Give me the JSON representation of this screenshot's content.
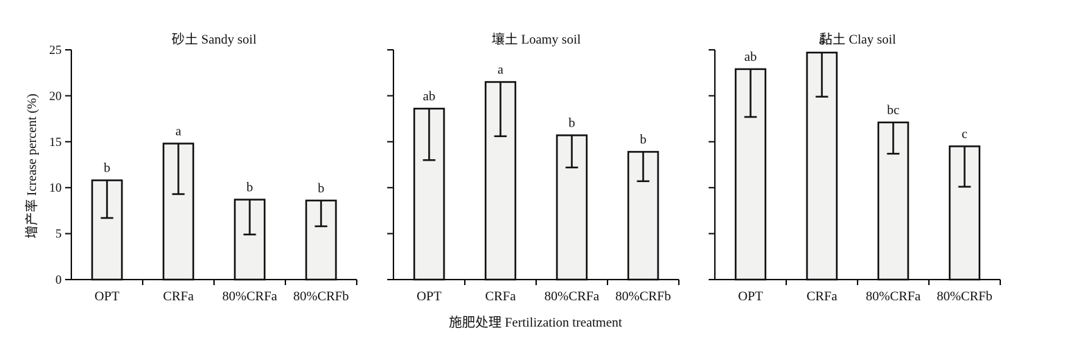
{
  "figure": {
    "ylabel": "增产率 Icrease percent (%)",
    "xlabel": "施肥处理 Fertilization treatment"
  },
  "chart_data": [
    {
      "type": "bar",
      "title": "砂土 Sandy soil",
      "categories": [
        "OPT",
        "CRFa",
        "80%CRFa",
        "80%CRFb"
      ],
      "values": [
        10.8,
        14.8,
        8.7,
        8.6
      ],
      "error_lower": [
        6.7,
        9.3,
        4.9,
        5.8
      ],
      "significance_letters": [
        "b",
        "a",
        "b",
        "b"
      ],
      "ylim": [
        0,
        25
      ],
      "yticks": [
        0,
        5,
        10,
        15,
        20,
        25
      ],
      "show_tick_labels": true
    },
    {
      "type": "bar",
      "title": "壤土 Loamy soil",
      "categories": [
        "OPT",
        "CRFa",
        "80%CRFa",
        "80%CRFb"
      ],
      "values": [
        18.6,
        21.5,
        15.7,
        13.9
      ],
      "error_lower": [
        13.0,
        15.6,
        12.2,
        10.7
      ],
      "significance_letters": [
        "ab",
        "a",
        "b",
        "b"
      ],
      "ylim": [
        0,
        25
      ],
      "yticks": [
        0,
        5,
        10,
        15,
        20,
        25
      ],
      "show_tick_labels": false
    },
    {
      "type": "bar",
      "title": "黏土 Clay soil",
      "categories": [
        "OPT",
        "CRFa",
        "80%CRFa",
        "80%CRFb"
      ],
      "values": [
        22.9,
        24.7,
        17.1,
        14.5
      ],
      "error_lower": [
        17.7,
        19.9,
        13.7,
        10.1
      ],
      "significance_letters": [
        "ab",
        "a",
        "bc",
        "c"
      ],
      "ylim": [
        0,
        25
      ],
      "yticks": [
        0,
        5,
        10,
        15,
        20,
        25
      ],
      "show_tick_labels": false
    }
  ],
  "colors": {
    "bar_fill": "#f2f3f1",
    "stroke": "#111111"
  }
}
